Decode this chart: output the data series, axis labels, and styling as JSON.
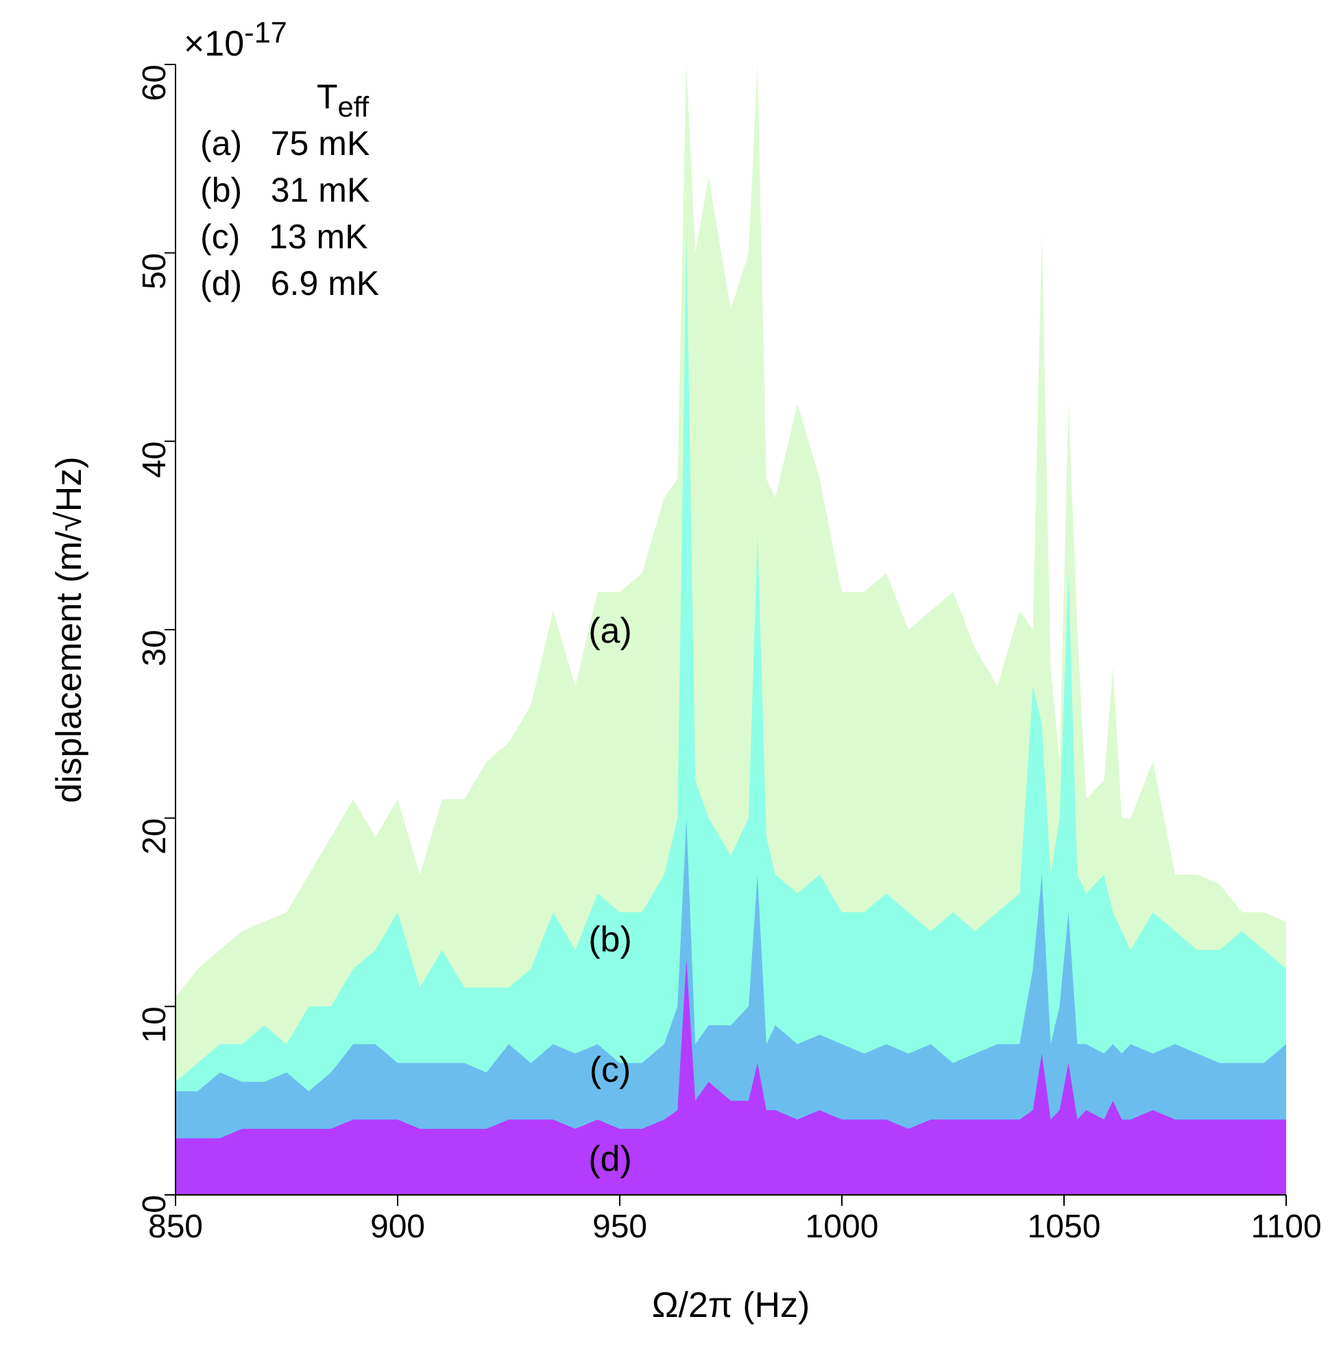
{
  "chart_data": {
    "type": "area",
    "xlabel": "Ω/2π (Hz)",
    "ylabel": "displacement (m/√Hz)",
    "x": [
      850,
      855,
      860,
      865,
      870,
      875,
      880,
      885,
      890,
      895,
      900,
      905,
      910,
      915,
      920,
      925,
      930,
      935,
      940,
      945,
      950,
      955,
      960,
      963,
      965,
      967,
      970,
      975,
      979,
      981,
      983,
      985,
      990,
      995,
      1000,
      1005,
      1010,
      1015,
      1020,
      1025,
      1030,
      1035,
      1040,
      1043,
      1045,
      1047,
      1049,
      1051,
      1053,
      1055,
      1059,
      1061,
      1063,
      1065,
      1070,
      1075,
      1080,
      1085,
      1090,
      1095,
      1100
    ],
    "series": [
      {
        "color": "#dcfad0",
        "values": [
          10.5,
          12,
          13,
          14,
          14.5,
          15,
          17,
          19,
          21,
          19,
          21,
          17,
          21,
          21,
          23,
          24,
          26,
          31,
          27,
          32,
          32,
          33,
          37,
          38,
          60,
          50,
          54,
          47,
          50,
          60,
          38,
          37,
          42,
          38,
          32,
          32,
          33,
          30,
          31,
          32,
          29,
          27,
          31,
          30,
          51,
          28,
          23,
          42,
          30,
          21,
          22,
          28,
          20,
          20,
          23,
          17,
          17,
          16.5,
          15,
          15,
          14.5
        ]
      },
      {
        "color": "#8effe6",
        "values": [
          6,
          7,
          8,
          8,
          9,
          8,
          10,
          10,
          12,
          13,
          15,
          11,
          13,
          11,
          11,
          11,
          12,
          15,
          13,
          16,
          15,
          15,
          17,
          20,
          51,
          22,
          20,
          18,
          20,
          35,
          19,
          17,
          16,
          17,
          15,
          15,
          16,
          15,
          14,
          15,
          14,
          15,
          16,
          27,
          25,
          17,
          20,
          33,
          17,
          16,
          17,
          15,
          14,
          13,
          15,
          14,
          13,
          13,
          14,
          13,
          12
        ]
      },
      {
        "color": "#6bbdee",
        "values": [
          5.5,
          5.5,
          6.5,
          6,
          6,
          6.5,
          5.5,
          6.5,
          8,
          8,
          7,
          7,
          7,
          7,
          6.5,
          8,
          7,
          8,
          7.5,
          8,
          7,
          7,
          8,
          10,
          20,
          8,
          9,
          9,
          10,
          17,
          8,
          9,
          8,
          8.5,
          8,
          7.5,
          8,
          7.5,
          8,
          7,
          7.5,
          8,
          8,
          12,
          17,
          8,
          10,
          15,
          8,
          8,
          7.5,
          8,
          7.5,
          8,
          7.5,
          8,
          7.5,
          7,
          7,
          7,
          8
        ]
      },
      {
        "color": "#b43cff",
        "values": [
          3,
          3,
          3,
          3.5,
          3.5,
          3.5,
          3.5,
          3.5,
          4,
          4,
          4,
          3.5,
          3.5,
          3.5,
          3.5,
          4,
          4,
          4,
          3.5,
          4,
          3.5,
          3.5,
          4,
          4.5,
          12.5,
          5,
          6,
          5,
          5,
          7,
          4.5,
          4.5,
          4,
          4.5,
          4,
          4,
          4,
          3.5,
          4,
          4,
          4,
          4,
          4,
          4.5,
          7.5,
          4,
          4.5,
          7,
          4,
          4.5,
          4,
          5,
          4,
          4,
          4.5,
          4,
          4,
          4,
          4,
          4,
          4
        ]
      }
    ],
    "xlim": [
      850,
      1100
    ],
    "ylim": [
      0,
      60
    ],
    "xticks": [
      850,
      900,
      950,
      1000,
      1050,
      1100
    ],
    "yticks": [
      0,
      10,
      20,
      30,
      40,
      50,
      60
    ],
    "grid": false,
    "legend": false,
    "annotations": [
      "×10$^{-17}$",
      "T$_{eff}$",
      "(a)   75 mK",
      "(b)   31 mK",
      "(c)   13 mK",
      "(d)   6.9 mK",
      "(a)",
      "(b)",
      "(c)",
      "(d)"
    ]
  }
}
